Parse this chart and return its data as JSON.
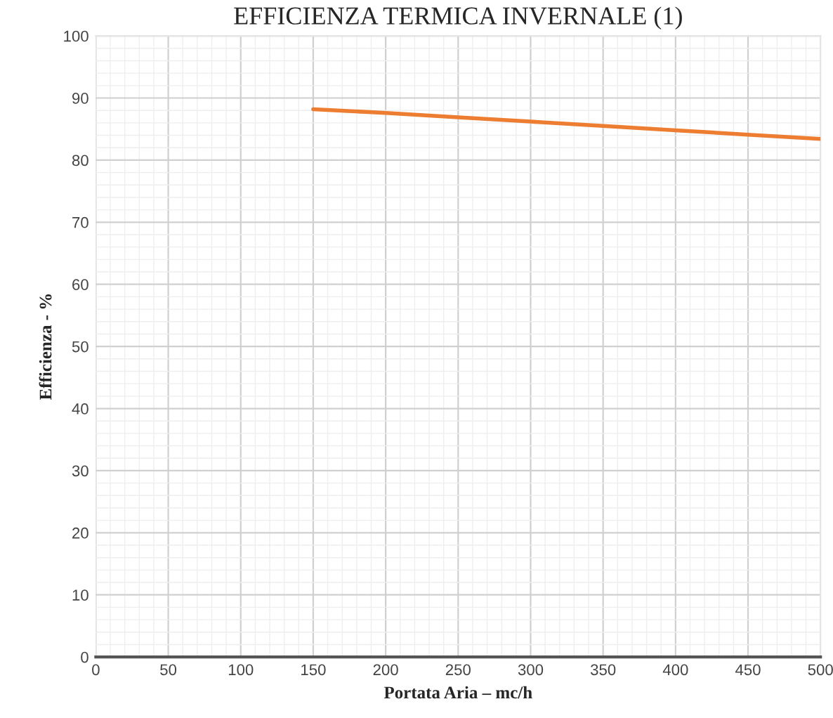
{
  "chart_data": {
    "type": "line",
    "title": "EFFICIENZA TERMICA INVERNALE (1)",
    "xlabel": "Portata Aria – mc/h",
    "ylabel": "Efficienza - %",
    "series": [
      {
        "color": "#ed7d31",
        "x": [
          150,
          200,
          250,
          300,
          350,
          400,
          450,
          500
        ],
        "values": [
          88.2,
          87.6,
          86.9,
          86.2,
          85.5,
          84.8,
          84.1,
          83.4
        ]
      }
    ],
    "xlim": [
      0,
      500
    ],
    "xticks": [
      0,
      50,
      100,
      150,
      200,
      250,
      300,
      350,
      400,
      450,
      500
    ],
    "ylim": [
      0,
      100
    ],
    "yticks": [
      0,
      10,
      20,
      30,
      40,
      50,
      60,
      70,
      80,
      90,
      100
    ],
    "grid": true,
    "marker": "none",
    "line_style": "solid"
  }
}
